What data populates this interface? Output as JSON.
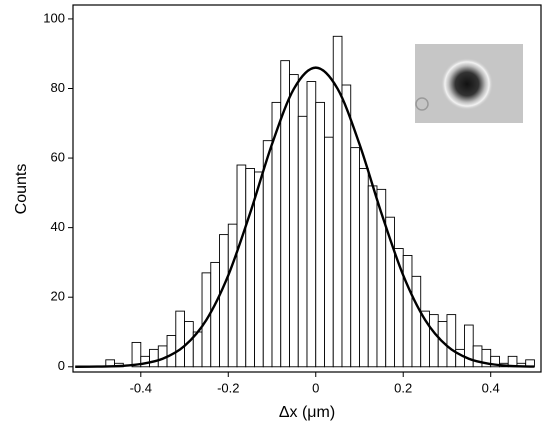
{
  "chart_data": {
    "type": "histogram",
    "x_label": "Δx (μm)",
    "y_label": "Counts",
    "bins": [
      -0.48,
      -0.46,
      -0.44,
      -0.42,
      -0.4,
      -0.38,
      -0.36,
      -0.34,
      -0.32,
      -0.3,
      -0.28,
      -0.26,
      -0.24,
      -0.22,
      -0.2,
      -0.18,
      -0.16,
      -0.14,
      -0.12,
      -0.1,
      -0.08,
      -0.06,
      -0.04,
      -0.02,
      0.0,
      0.02,
      0.04,
      0.06,
      0.08,
      0.1,
      0.12,
      0.14,
      0.16,
      0.18,
      0.2,
      0.22,
      0.24,
      0.26,
      0.28,
      0.3,
      0.32,
      0.34,
      0.36,
      0.38,
      0.4,
      0.42,
      0.44,
      0.46,
      0.48,
      0.5
    ],
    "counts": [
      2,
      1,
      0,
      7,
      3,
      5,
      6,
      9,
      16,
      13,
      10,
      27,
      30,
      38,
      41,
      58,
      57,
      56,
      65,
      76,
      88,
      84,
      72,
      82,
      76,
      66,
      95,
      81,
      63,
      57,
      52,
      51,
      43,
      34,
      32,
      26,
      16,
      15,
      13,
      15,
      5,
      12,
      6,
      5,
      3,
      1,
      3,
      1,
      2
    ],
    "bar_color": "#ffffff",
    "edge_color": "#000000",
    "fit": {
      "x": [
        -0.55,
        -0.5,
        -0.45,
        -0.4,
        -0.35,
        -0.3,
        -0.25,
        -0.2,
        -0.15,
        -0.1,
        -0.05,
        0,
        0.05,
        0.1,
        0.15,
        0.2,
        0.25,
        0.3,
        0.35,
        0.4,
        0.45,
        0.5
      ],
      "values": [
        0.01,
        0.05,
        0.2,
        0.8,
        2.3,
        6.0,
        13.5,
        26.3,
        44.2,
        64.0,
        79.9,
        86,
        79.9,
        64.0,
        44.2,
        26.3,
        13.5,
        6.0,
        2.3,
        0.8,
        0.2,
        0.05
      ],
      "color": "#000000"
    },
    "xlim": [
      -0.555,
      0.515
    ],
    "xticks": [
      -0.4,
      -0.2,
      0,
      0.2,
      0.4
    ],
    "ylim": [
      -1.5,
      104
    ],
    "yticks": [
      0,
      20,
      40,
      60,
      80,
      100
    ]
  }
}
